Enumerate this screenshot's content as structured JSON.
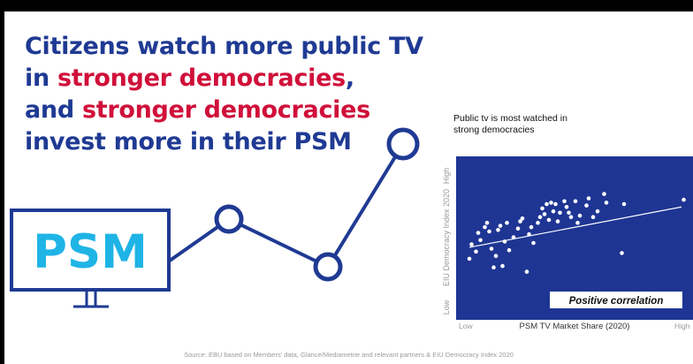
{
  "headline": {
    "line1": "Citizens watch more public TV",
    "line2_a": "in ",
    "line2_b": "stronger democracies",
    "line2_c": ",",
    "line3_a": "and ",
    "line3_b": "stronger democracies",
    "line4": "invest more in their PSM"
  },
  "monitor": {
    "label": "PSM"
  },
  "colors": {
    "navy": "#1f3a93",
    "red": "#d0103a",
    "cyan": "#1fb4e6",
    "plot_bg": "#1e3593"
  },
  "chart_title_line1": "Public tv is most watched in",
  "chart_title_line2": "strong democracies",
  "chart_data": {
    "type": "scatter",
    "xlabel": "PSM TV Market Share (2020)",
    "ylabel": "EIU Democracy Index 2020",
    "x_low": "Low",
    "x_high": "High",
    "y_low": "Low",
    "y_high": "High",
    "xlim": [
      0,
      100
    ],
    "ylim": [
      0,
      100
    ],
    "annotation": "Positive correlation",
    "trendline": [
      [
        2,
        43
      ],
      [
        98,
        71
      ]
    ],
    "points": [
      [
        2,
        35
      ],
      [
        3,
        45
      ],
      [
        5,
        40
      ],
      [
        6,
        53
      ],
      [
        7,
        48
      ],
      [
        9,
        57
      ],
      [
        10,
        60
      ],
      [
        11,
        54
      ],
      [
        12,
        42
      ],
      [
        13,
        29
      ],
      [
        14,
        37
      ],
      [
        15,
        55
      ],
      [
        16,
        58
      ],
      [
        17,
        30
      ],
      [
        18,
        47
      ],
      [
        19,
        60
      ],
      [
        20,
        41
      ],
      [
        22,
        50
      ],
      [
        24,
        56
      ],
      [
        25,
        61
      ],
      [
        26,
        63
      ],
      [
        28,
        26
      ],
      [
        29,
        52
      ],
      [
        30,
        57
      ],
      [
        31,
        46
      ],
      [
        33,
        60
      ],
      [
        34,
        64
      ],
      [
        35,
        70
      ],
      [
        36,
        66
      ],
      [
        37,
        73
      ],
      [
        38,
        62
      ],
      [
        39,
        74
      ],
      [
        40,
        68
      ],
      [
        41,
        73
      ],
      [
        42,
        61
      ],
      [
        43,
        67
      ],
      [
        45,
        75
      ],
      [
        46,
        71
      ],
      [
        47,
        67
      ],
      [
        48,
        64
      ],
      [
        50,
        75
      ],
      [
        51,
        60
      ],
      [
        52,
        65
      ],
      [
        55,
        72
      ],
      [
        56,
        77
      ],
      [
        58,
        64
      ],
      [
        60,
        68
      ],
      [
        63,
        80
      ],
      [
        64,
        74
      ],
      [
        72,
        73
      ],
      [
        71,
        39
      ],
      [
        99,
        76
      ]
    ]
  },
  "source_text": "Source: EBU based on Members' data, Glance/Mediametrie and relevant partners & EIU Democracy Index 2020"
}
